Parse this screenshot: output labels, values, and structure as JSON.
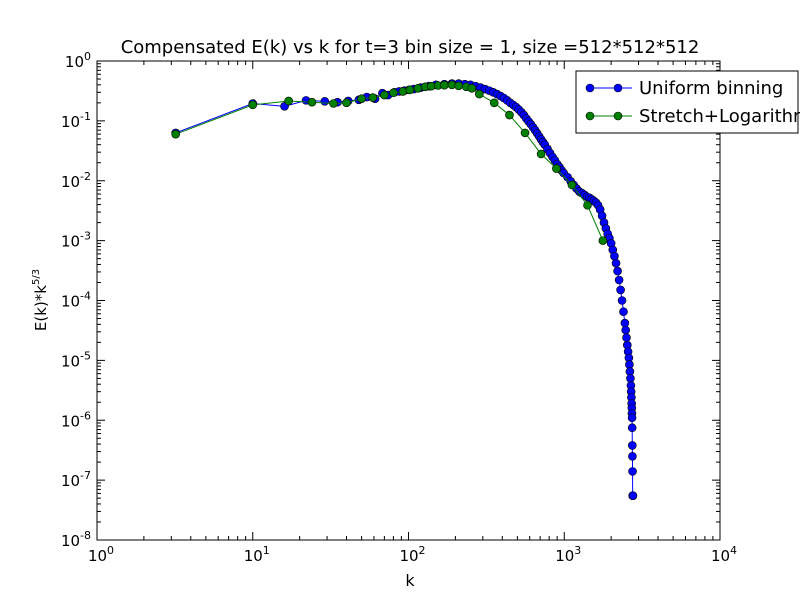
{
  "chart_data": {
    "type": "line",
    "title": "Compensated E(k) vs k for t=3 bin size = 1, size =512*512*512",
    "xlabel": "k",
    "ylabel": "E(k)*k^5/3",
    "xscale": "log",
    "yscale": "log",
    "xlim": [
      1,
      10000
    ],
    "ylim": [
      1e-08,
      1
    ],
    "grid": false,
    "legend": "top-right",
    "x_ticks": [
      {
        "value": 1,
        "base": "10",
        "exp": "0"
      },
      {
        "value": 10,
        "base": "10",
        "exp": "1"
      },
      {
        "value": 100,
        "base": "10",
        "exp": "2"
      },
      {
        "value": 1000,
        "base": "10",
        "exp": "3"
      },
      {
        "value": 10000,
        "base": "10",
        "exp": "4"
      }
    ],
    "y_ticks": [
      {
        "value": 1e-08,
        "base": "10",
        "exp": "-8"
      },
      {
        "value": 1e-07,
        "base": "10",
        "exp": "-7"
      },
      {
        "value": 1e-06,
        "base": "10",
        "exp": "-6"
      },
      {
        "value": 1e-05,
        "base": "10",
        "exp": "-5"
      },
      {
        "value": 0.0001,
        "base": "10",
        "exp": "-4"
      },
      {
        "value": 0.001,
        "base": "10",
        "exp": "-3"
      },
      {
        "value": 0.01,
        "base": "10",
        "exp": "-2"
      },
      {
        "value": 0.1,
        "base": "10",
        "exp": "-1"
      },
      {
        "value": 1,
        "base": "10",
        "exp": "0"
      }
    ],
    "series": [
      {
        "name": "Uniform binning",
        "color": "#0000ff",
        "x": [
          3.2,
          10,
          16,
          22,
          29,
          35,
          41,
          48,
          54,
          61,
          68,
          74,
          81,
          87,
          94,
          101,
          108,
          120,
          135,
          150,
          170,
          190,
          210,
          230,
          250,
          270,
          290,
          310,
          330,
          350,
          370,
          390,
          410,
          430,
          450,
          470,
          490,
          510,
          530,
          550,
          570,
          590,
          610,
          630,
          650,
          670,
          690,
          710,
          730,
          750,
          780,
          810,
          840,
          870,
          900,
          930,
          960,
          990,
          1050,
          1100,
          1150,
          1200,
          1250,
          1300,
          1350,
          1400,
          1450,
          1500,
          1550,
          1600,
          1650,
          1700,
          1750,
          1800,
          1850,
          1900,
          1950,
          2000,
          2050,
          2100,
          2150,
          2200,
          2250,
          2300,
          2350,
          2400,
          2450,
          2480,
          2510,
          2540,
          2570,
          2600,
          2620,
          2640,
          2660,
          2680,
          2690,
          2700,
          2710,
          2715,
          2720,
          2725,
          2730,
          2735,
          2740,
          2745,
          2750,
          2755,
          2760
        ],
        "y": [
          0.063,
          0.195,
          0.175,
          0.22,
          0.212,
          0.205,
          0.215,
          0.225,
          0.25,
          0.235,
          0.29,
          0.27,
          0.3,
          0.31,
          0.32,
          0.33,
          0.34,
          0.36,
          0.38,
          0.4,
          0.41,
          0.42,
          0.42,
          0.41,
          0.4,
          0.38,
          0.36,
          0.34,
          0.32,
          0.3,
          0.28,
          0.26,
          0.24,
          0.22,
          0.2,
          0.185,
          0.17,
          0.155,
          0.14,
          0.125,
          0.11,
          0.098,
          0.088,
          0.078,
          0.07,
          0.062,
          0.055,
          0.049,
          0.044,
          0.04,
          0.034,
          0.029,
          0.025,
          0.022,
          0.019,
          0.017,
          0.015,
          0.0135,
          0.0115,
          0.0098,
          0.0085,
          0.0074,
          0.0066,
          0.0062,
          0.0058,
          0.0054,
          0.0052,
          0.0049,
          0.0046,
          0.0043,
          0.0039,
          0.0033,
          0.0026,
          0.002,
          0.0016,
          0.0013,
          0.0011,
          0.0009,
          0.0007,
          0.00055,
          0.00042,
          0.00031,
          0.00022,
          0.00015,
          0.0001,
          6.5e-05,
          4.2e-05,
          3.2e-05,
          2.4e-05,
          1.8e-05,
          1.4e-05,
          1.1e-05,
          8.5e-06,
          6.5e-06,
          5e-06,
          3.8e-06,
          3e-06,
          2.4e-06,
          1.9e-06,
          1.6e-06,
          1.3e-06,
          1.1e-06,
          7.5e-07,
          3.8e-07,
          2.5e-07,
          1.4e-07,
          5.5e-08,
          5.5e-08,
          5.5e-08
        ]
      },
      {
        "name": "Stretch+Logarithmic binning",
        "color": "#008000",
        "x": [
          3.2,
          10,
          17,
          24,
          33,
          40,
          50,
          59,
          70,
          80,
          92,
          102,
          115,
          128,
          140,
          155,
          170,
          190,
          210,
          235,
          255,
          285,
          355,
          445,
          560,
          710,
          890,
          1120,
          1410,
          1770
        ],
        "y": [
          0.06,
          0.185,
          0.215,
          0.205,
          0.195,
          0.2,
          0.235,
          0.245,
          0.27,
          0.295,
          0.31,
          0.33,
          0.35,
          0.37,
          0.38,
          0.39,
          0.395,
          0.4,
          0.385,
          0.37,
          0.35,
          0.28,
          0.2,
          0.125,
          0.063,
          0.028,
          0.016,
          0.0085,
          0.0039,
          0.001
        ]
      }
    ]
  }
}
